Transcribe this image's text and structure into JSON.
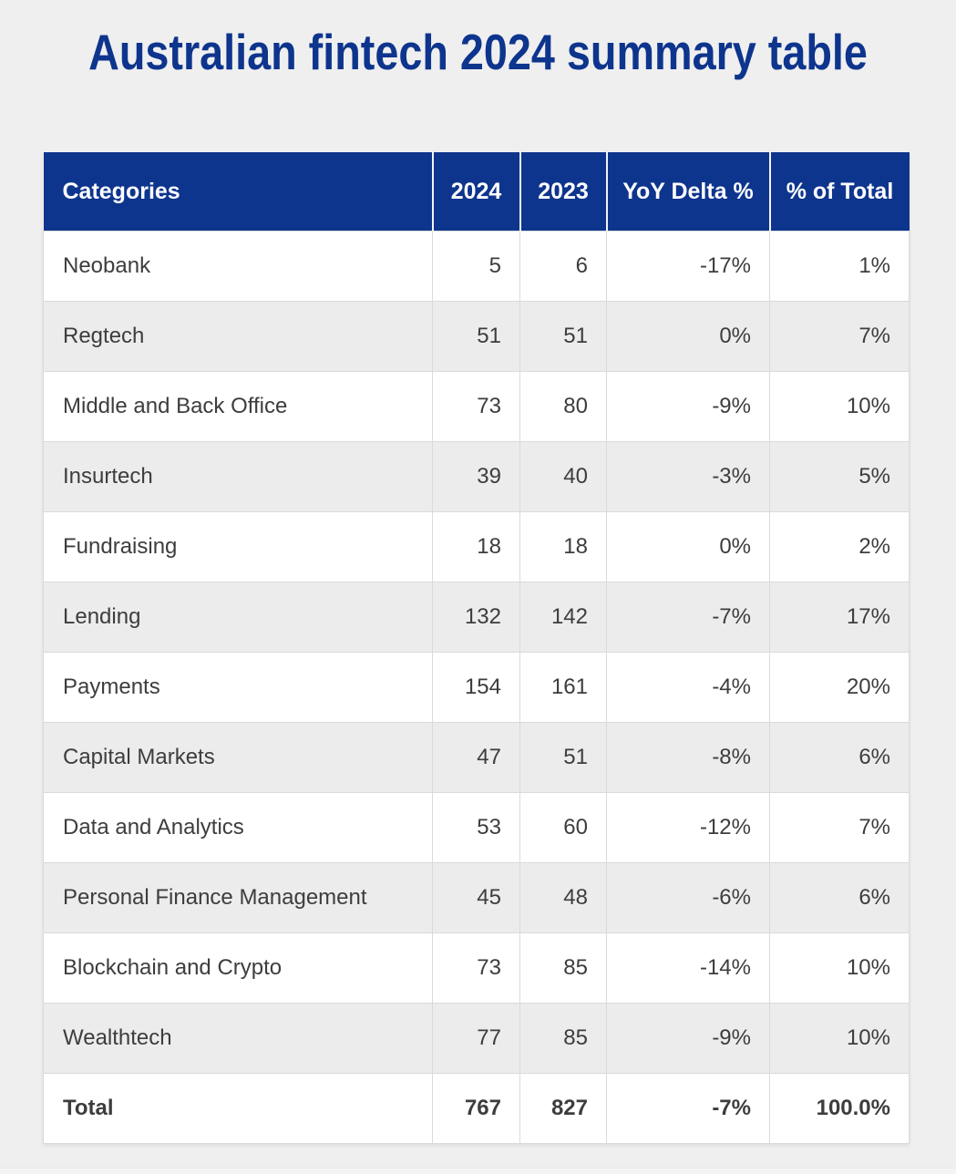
{
  "title": "Australian fintech 2024 summary table",
  "colors": {
    "title_text": "#0e358d",
    "header_bg": "#0e358d",
    "header_text": "#ffffff",
    "row_bg": "#ffffff",
    "row_alt_bg": "#ececec",
    "page_bg": "#efefef",
    "body_text": "#3d3d3d",
    "cell_border": "#dadada"
  },
  "chart_data": {
    "type": "table",
    "title": "Australian fintech 2024 summary table",
    "columns": [
      "Categories",
      "2024",
      "2023",
      "YoY Delta %",
      "% of Total"
    ],
    "rows": [
      [
        "Neobank",
        "5",
        "6",
        "-17%",
        "1%"
      ],
      [
        "Regtech",
        "51",
        "51",
        "0%",
        "7%"
      ],
      [
        "Middle and Back Office",
        "73",
        "80",
        "-9%",
        "10%"
      ],
      [
        "Insurtech",
        "39",
        "40",
        "-3%",
        "5%"
      ],
      [
        "Fundraising",
        "18",
        "18",
        "0%",
        "2%"
      ],
      [
        "Lending",
        "132",
        "142",
        "-7%",
        "17%"
      ],
      [
        "Payments",
        "154",
        "161",
        "-4%",
        "20%"
      ],
      [
        "Capital Markets",
        "47",
        "51",
        "-8%",
        "6%"
      ],
      [
        "Data and Analytics",
        "53",
        "60",
        "-12%",
        "7%"
      ],
      [
        "Personal Finance Management",
        "45",
        "48",
        "-6%",
        "6%"
      ],
      [
        "Blockchain and Crypto",
        "73",
        "85",
        "-14%",
        "10%"
      ],
      [
        "Wealthtech",
        "77",
        "85",
        "-9%",
        "10%"
      ]
    ],
    "total_row": [
      "Total",
      "767",
      "827",
      "-7%",
      "100.0%"
    ]
  }
}
